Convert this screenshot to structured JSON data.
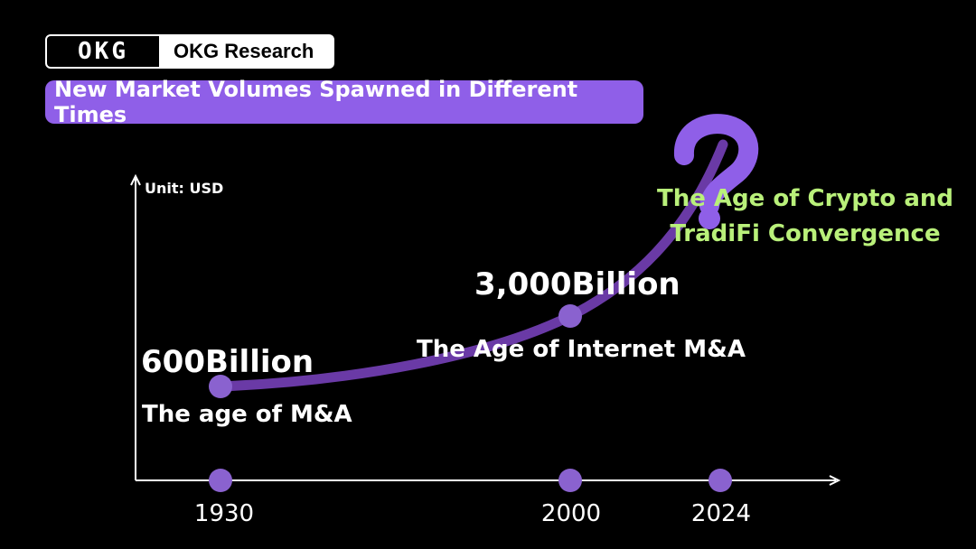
{
  "header": {
    "logo_text": "OKG",
    "brand_name": "OKG Research"
  },
  "colors": {
    "accent": "#8f5fe8",
    "point": "#8a62cf",
    "curve": "#6a3aa6",
    "green": "#b9f07a",
    "axis": "#ffffff",
    "background": "#000000"
  },
  "chart_data": {
    "type": "line",
    "title": "New Market Volumes Spawned in Different Times",
    "ylabel": "Unit: USD",
    "xlabel": "",
    "points": [
      {
        "year": "1930",
        "value": 600,
        "value_label": "600Billion",
        "era": "The age of M&A"
      },
      {
        "year": "2000",
        "value": 3000,
        "value_label": "3,000Billion",
        "era": "The Age of Internet M&A"
      },
      {
        "year": "2024",
        "value": null,
        "value_label": "?",
        "era_lines": [
          "The Age of Crypto and",
          "TradiFi Convergence"
        ]
      }
    ],
    "ticks": [
      "1930",
      "2000",
      "2024"
    ]
  }
}
